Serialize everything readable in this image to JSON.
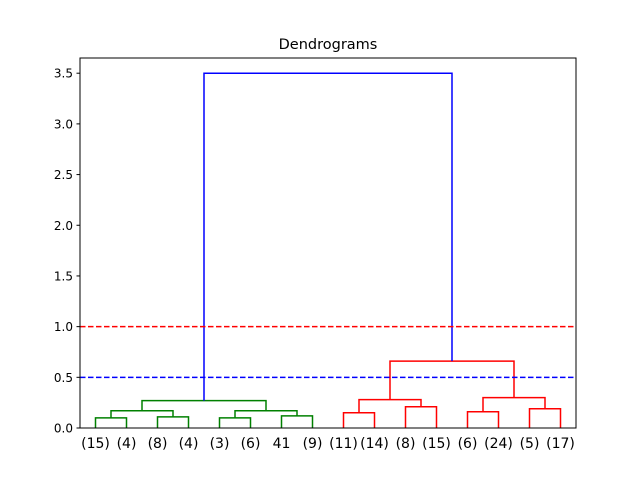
{
  "chart_data": {
    "type": "dendrogram",
    "title": "Dendrograms",
    "xlabel": "",
    "ylabel": "",
    "ylim": [
      0,
      3.65
    ],
    "yticks": [
      "0.0",
      "0.5",
      "1.0",
      "1.5",
      "2.0",
      "2.5",
      "3.0",
      "3.5"
    ],
    "ytick_values": [
      0,
      0.5,
      1.0,
      1.5,
      2.0,
      2.5,
      3.0,
      3.5
    ],
    "grid": false,
    "leaves": [
      "(15)",
      "(4)",
      "(8)",
      "(4)",
      "(3)",
      "(6)",
      "41",
      "(9)",
      "(11)",
      "(14)",
      "(8)",
      "(15)",
      "(6)",
      "(24)",
      "(5)",
      "(17)"
    ],
    "clusters": [
      {
        "color": "#008000",
        "leaf_range": [
          0,
          7
        ]
      },
      {
        "color": "#ff0000",
        "leaf_range": [
          8,
          15
        ]
      },
      {
        "color": "#0000ff",
        "role": "root link"
      }
    ],
    "merges": [
      {
        "left": 0,
        "right": 1,
        "height": 0.1,
        "color": "#008000"
      },
      {
        "left": 2,
        "right": 3,
        "height": 0.11,
        "color": "#008000"
      },
      {
        "left": 4,
        "right": 5,
        "height": 0.1,
        "color": "#008000"
      },
      {
        "left": 6,
        "right": 7,
        "height": 0.12,
        "color": "#008000"
      },
      {
        "left": "m0",
        "right": "m1",
        "height": 0.17,
        "color": "#008000"
      },
      {
        "left": "m2",
        "right": "m3",
        "height": 0.17,
        "color": "#008000"
      },
      {
        "left": "m4",
        "right": "m5",
        "height": 0.27,
        "color": "#008000"
      },
      {
        "left": 8,
        "right": 9,
        "height": 0.15,
        "color": "#ff0000"
      },
      {
        "left": 10,
        "right": 11,
        "height": 0.21,
        "color": "#ff0000"
      },
      {
        "left": 12,
        "right": 13,
        "height": 0.16,
        "color": "#ff0000"
      },
      {
        "left": 14,
        "right": 15,
        "height": 0.19,
        "color": "#ff0000"
      },
      {
        "left": "m7",
        "right": "m8",
        "height": 0.28,
        "color": "#ff0000"
      },
      {
        "left": "m9",
        "right": "m10",
        "height": 0.3,
        "color": "#ff0000"
      },
      {
        "left": "m11",
        "right": "m12",
        "height": 0.66,
        "color": "#ff0000"
      },
      {
        "left": "m6",
        "right": "m13",
        "height": 3.5,
        "color": "#0000ff"
      }
    ],
    "reference_lines": [
      {
        "y": 1.0,
        "color": "#ff0000",
        "style": "dashed"
      },
      {
        "y": 0.5,
        "color": "#0000ff",
        "style": "dashed"
      }
    ]
  }
}
